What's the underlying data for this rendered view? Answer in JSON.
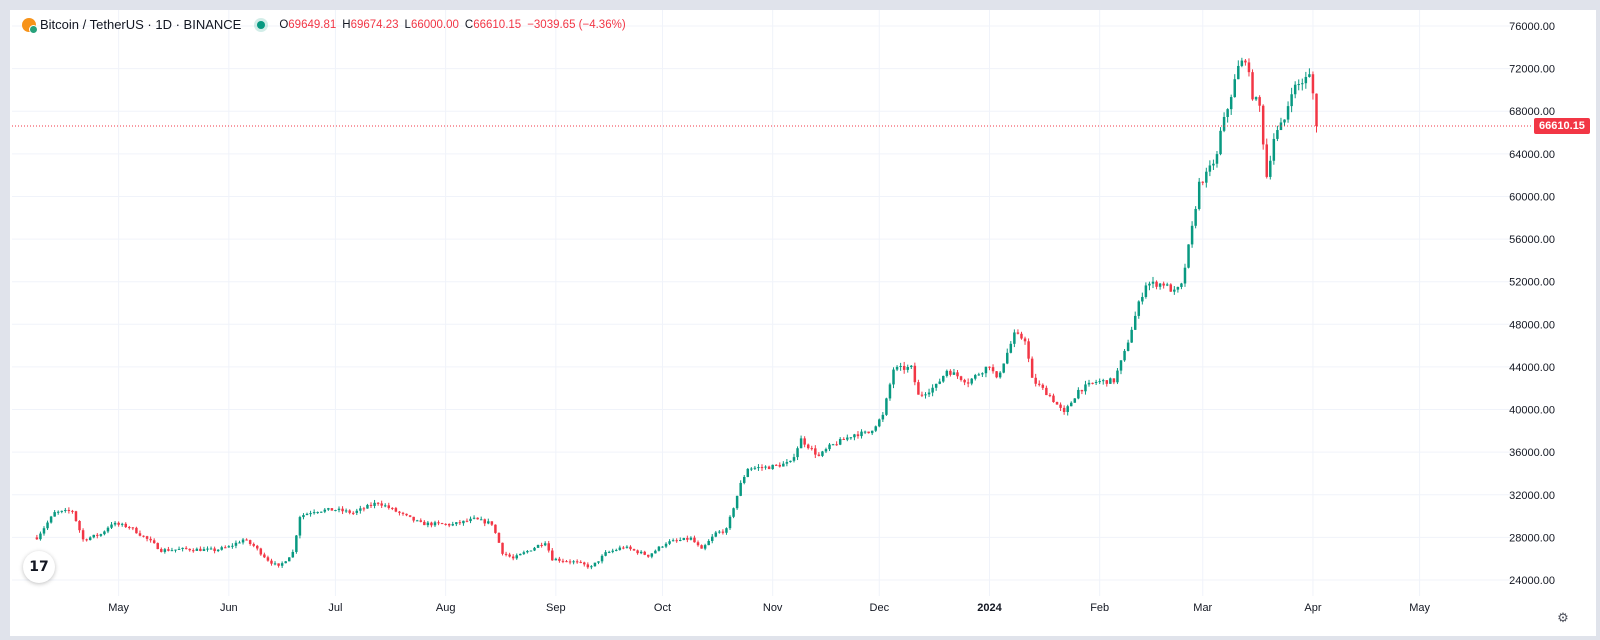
{
  "legend": {
    "symbol": "Bitcoin / TetherUS · 1D · BINANCE",
    "o_label": "O",
    "o": "69649.81",
    "h_label": "H",
    "h": "69674.23",
    "l_label": "L",
    "l": "66000.00",
    "c_label": "C",
    "c": "66610.15",
    "change": "−3039.65 (−4.36%)"
  },
  "logo_text": "17",
  "last_price_label": "66610.15",
  "colors": {
    "up": "#089981",
    "down": "#f23645",
    "grid": "#f0f3fa",
    "axis_text": "#131722"
  },
  "chart_data": {
    "type": "candlestick",
    "x_tick_labels": [
      "May",
      "Jun",
      "Jul",
      "Aug",
      "Sep",
      "Oct",
      "Nov",
      "Dec",
      "2024",
      "Feb",
      "Mar",
      "Apr",
      "May"
    ],
    "y_tick_labels": [
      "24000.00",
      "28000.00",
      "32000.00",
      "36000.00",
      "40000.00",
      "44000.00",
      "48000.00",
      "52000.00",
      "56000.00",
      "60000.00",
      "64000.00",
      "68000.00",
      "72000.00",
      "76000.00"
    ],
    "ylim": [
      22500,
      77500
    ],
    "last_price": 66610.15,
    "grid": true,
    "close_anchors": [
      [
        "2023-04-08",
        28000
      ],
      [
        "2023-04-13",
        30300
      ],
      [
        "2023-04-18",
        30500
      ],
      [
        "2023-04-21",
        27800
      ],
      [
        "2023-04-26",
        28300
      ],
      [
        "2023-04-29",
        29300
      ],
      [
        "2023-05-04",
        29000
      ],
      [
        "2023-05-10",
        27600
      ],
      [
        "2023-05-13",
        26800
      ],
      [
        "2023-05-20",
        26900
      ],
      [
        "2023-05-28",
        26800
      ],
      [
        "2023-06-01",
        27100
      ],
      [
        "2023-06-05",
        27800
      ],
      [
        "2023-06-08",
        27200
      ],
      [
        "2023-06-12",
        25900
      ],
      [
        "2023-06-15",
        25200
      ],
      [
        "2023-06-19",
        26600
      ],
      [
        "2023-06-21",
        30000
      ],
      [
        "2023-06-25",
        30500
      ],
      [
        "2023-07-01",
        30600
      ],
      [
        "2023-07-06",
        30300
      ],
      [
        "2023-07-13",
        31300
      ],
      [
        "2023-07-20",
        30100
      ],
      [
        "2023-07-25",
        29300
      ],
      [
        "2023-08-03",
        29200
      ],
      [
        "2023-08-09",
        29700
      ],
      [
        "2023-08-14",
        29300
      ],
      [
        "2023-08-17",
        26600
      ],
      [
        "2023-08-20",
        26000
      ],
      [
        "2023-08-29",
        27600
      ],
      [
        "2023-08-31",
        26000
      ],
      [
        "2023-09-06",
        25700
      ],
      [
        "2023-09-11",
        25200
      ],
      [
        "2023-09-15",
        26500
      ],
      [
        "2023-09-20",
        27100
      ],
      [
        "2023-09-27",
        26300
      ],
      [
        "2023-10-02",
        27500
      ],
      [
        "2023-10-09",
        27900
      ],
      [
        "2023-10-12",
        26800
      ],
      [
        "2023-10-16",
        28400
      ],
      [
        "2023-10-19",
        28700
      ],
      [
        "2023-10-23",
        33000
      ],
      [
        "2023-10-25",
        34500
      ],
      [
        "2023-10-31",
        34600
      ],
      [
        "2023-11-06",
        35000
      ],
      [
        "2023-11-09",
        37200
      ],
      [
        "2023-11-14",
        35600
      ],
      [
        "2023-11-17",
        36500
      ],
      [
        "2023-11-24",
        37700
      ],
      [
        "2023-11-28",
        37800
      ],
      [
        "2023-12-02",
        39400
      ],
      [
        "2023-12-05",
        43800
      ],
      [
        "2023-12-10",
        43900
      ],
      [
        "2023-12-12",
        41300
      ],
      [
        "2023-12-17",
        42200
      ],
      [
        "2023-12-20",
        43700
      ],
      [
        "2023-12-26",
        42600
      ],
      [
        "2024-01-01",
        44200
      ],
      [
        "2024-01-03",
        42800
      ],
      [
        "2024-01-08",
        47000
      ],
      [
        "2024-01-11",
        46600
      ],
      [
        "2024-01-13",
        42800
      ],
      [
        "2024-01-18",
        41300
      ],
      [
        "2024-01-22",
        39600
      ],
      [
        "2024-01-26",
        41800
      ],
      [
        "2024-01-31",
        42600
      ],
      [
        "2024-02-05",
        42700
      ],
      [
        "2024-02-08",
        45300
      ],
      [
        "2024-02-12",
        49900
      ],
      [
        "2024-02-14",
        51800
      ],
      [
        "2024-02-19",
        51800
      ],
      [
        "2024-02-22",
        51000
      ],
      [
        "2024-02-24",
        51600
      ],
      [
        "2024-02-27",
        57000
      ],
      [
        "2024-02-29",
        61200
      ],
      [
        "2024-03-02",
        62000
      ],
      [
        "2024-03-05",
        63800
      ],
      [
        "2024-03-06",
        66000
      ],
      [
        "2024-03-08",
        68300
      ],
      [
        "2024-03-11",
        72100
      ],
      [
        "2024-03-13",
        73000
      ],
      [
        "2024-03-15",
        69500
      ],
      [
        "2024-03-17",
        68400
      ],
      [
        "2024-03-19",
        61900
      ],
      [
        "2024-03-21",
        65500
      ],
      [
        "2024-03-24",
        67200
      ],
      [
        "2024-03-26",
        70000
      ],
      [
        "2024-03-31",
        71300
      ],
      [
        "2024-04-01",
        69650
      ],
      [
        "2024-04-02",
        66610.15
      ]
    ],
    "last_candle": {
      "o": 69649.81,
      "h": 69674.23,
      "l": 66000.0,
      "c": 66610.15
    }
  }
}
